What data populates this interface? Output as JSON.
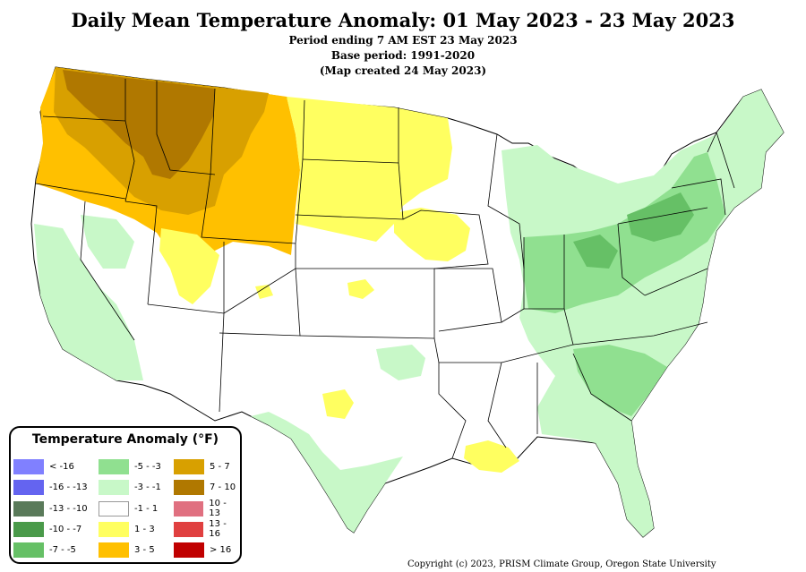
{
  "header": {
    "title": "Daily Mean Temperature Anomaly: 01 May 2023 - 23 May 2023",
    "period": "Period ending 7 AM EST 23 May 2023",
    "base": "Base period: 1991-2020",
    "created": "(Map created 24 May 2023)"
  },
  "legend": {
    "title": "Temperature Anomaly (°F)",
    "items": [
      {
        "label": "< -16",
        "color": "#8080ff"
      },
      {
        "label": "-16 - -13",
        "color": "#6464f0"
      },
      {
        "label": "-13 - -10",
        "color": "#5a7a5a"
      },
      {
        "label": "-10 - -7",
        "color": "#4a9a4a"
      },
      {
        "label": "-7 - -5",
        "color": "#66c066"
      },
      {
        "label": "-5 - -3",
        "color": "#90e090"
      },
      {
        "label": "-3 - -1",
        "color": "#c8f8c8"
      },
      {
        "label": "-1 - 1",
        "color": "#ffffff"
      },
      {
        "label": "1 - 3",
        "color": "#ffff60"
      },
      {
        "label": "3 - 5",
        "color": "#ffc000"
      },
      {
        "label": "5 - 7",
        "color": "#d8a000"
      },
      {
        "label": "7 - 10",
        "color": "#b07800"
      },
      {
        "label": "10 - 13",
        "color": "#e07080"
      },
      {
        "label": "13 - 16",
        "color": "#e04040"
      },
      {
        "label": "> 16",
        "color": "#c00000"
      }
    ]
  },
  "footer": {
    "copyright": "Copyright (c) 2023, PRISM Climate Group, Oregon State University"
  }
}
